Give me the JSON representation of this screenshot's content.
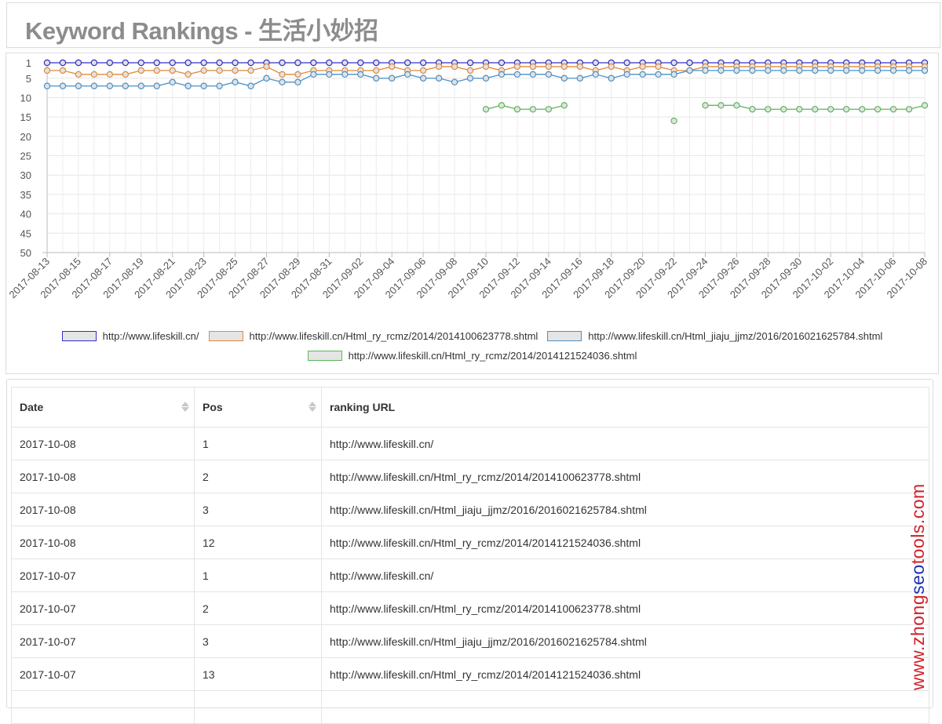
{
  "page": {
    "title": "Keyword Rankings - 生活小妙招"
  },
  "chart_data": {
    "type": "line",
    "ylim": [
      50,
      1
    ],
    "y_reversed": true,
    "y_ticks": [
      "1",
      "5",
      "10",
      "15",
      "20",
      "25",
      "30",
      "35",
      "40",
      "45",
      "50"
    ],
    "x": [
      "2017-08-13",
      "2017-08-14",
      "2017-08-15",
      "2017-08-16",
      "2017-08-17",
      "2017-08-18",
      "2017-08-19",
      "2017-08-20",
      "2017-08-21",
      "2017-08-22",
      "2017-08-23",
      "2017-08-24",
      "2017-08-25",
      "2017-08-26",
      "2017-08-27",
      "2017-08-28",
      "2017-08-29",
      "2017-08-30",
      "2017-08-31",
      "2017-09-01",
      "2017-09-02",
      "2017-09-03",
      "2017-09-04",
      "2017-09-05",
      "2017-09-06",
      "2017-09-07",
      "2017-09-08",
      "2017-09-09",
      "2017-09-10",
      "2017-09-11",
      "2017-09-12",
      "2017-09-13",
      "2017-09-14",
      "2017-09-15",
      "2017-09-16",
      "2017-09-17",
      "2017-09-18",
      "2017-09-19",
      "2017-09-20",
      "2017-09-21",
      "2017-09-22",
      "2017-09-23",
      "2017-09-24",
      "2017-09-25",
      "2017-09-26",
      "2017-09-27",
      "2017-09-28",
      "2017-09-29",
      "2017-09-30",
      "2017-10-01",
      "2017-10-02",
      "2017-10-03",
      "2017-10-04",
      "2017-10-05",
      "2017-10-06",
      "2017-10-07",
      "2017-10-08"
    ],
    "x_tick_labels": [
      "2017-08-13",
      "2017-08-15",
      "2017-08-17",
      "2017-08-19",
      "2017-08-21",
      "2017-08-23",
      "2017-08-25",
      "2017-08-27",
      "2017-08-29",
      "2017-08-31",
      "2017-09-02",
      "2017-09-04",
      "2017-09-06",
      "2017-09-08",
      "2017-09-10",
      "2017-09-12",
      "2017-09-14",
      "2017-09-16",
      "2017-09-18",
      "2017-09-20",
      "2017-09-22",
      "2017-09-24",
      "2017-09-26",
      "2017-09-28",
      "2017-09-30",
      "2017-10-02",
      "2017-10-04",
      "2017-10-06",
      "2017-10-08"
    ],
    "grid": true,
    "legend_position": "bottom",
    "series": [
      {
        "name": "http://www.lifeskill.cn/",
        "color": "#3030c8",
        "values": [
          1,
          1,
          1,
          1,
          1,
          1,
          1,
          1,
          1,
          1,
          1,
          1,
          1,
          1,
          1,
          1,
          1,
          1,
          1,
          1,
          1,
          1,
          1,
          1,
          1,
          1,
          1,
          1,
          1,
          1,
          1,
          1,
          1,
          1,
          1,
          1,
          1,
          1,
          1,
          1,
          1,
          1,
          1,
          1,
          1,
          1,
          1,
          1,
          1,
          1,
          1,
          1,
          1,
          1,
          1,
          1,
          1
        ]
      },
      {
        "name": "http://www.lifeskill.cn/Html_ry_rcmz/2014/2014100623778.shtml",
        "color": "#e08a3c",
        "values": [
          3,
          3,
          4,
          4,
          4,
          4,
          3,
          3,
          3,
          4,
          3,
          3,
          3,
          3,
          2,
          4,
          4,
          3,
          3,
          3,
          3,
          3,
          2,
          3,
          3,
          2,
          2,
          3,
          2,
          3,
          2,
          2,
          2,
          2,
          2,
          3,
          2,
          3,
          2,
          2,
          3,
          3,
          2,
          2,
          2,
          2,
          2,
          2,
          2,
          2,
          2,
          2,
          2,
          2,
          2,
          2,
          2
        ]
      },
      {
        "name": "http://www.lifeskill.cn/Html_jiaju_jjmz/2016/2016021625784.shtml",
        "color": "#4a90c8",
        "values": [
          7,
          7,
          7,
          7,
          7,
          7,
          7,
          7,
          6,
          7,
          7,
          7,
          6,
          7,
          5,
          6,
          6,
          4,
          4,
          4,
          4,
          5,
          5,
          4,
          5,
          5,
          6,
          5,
          5,
          4,
          4,
          4,
          4,
          5,
          5,
          4,
          5,
          4,
          4,
          4,
          4,
          3,
          3,
          3,
          3,
          3,
          3,
          3,
          3,
          3,
          3,
          3,
          3,
          3,
          3,
          3,
          3
        ]
      },
      {
        "name": "http://www.lifeskill.cn/Html_ry_rcmz/2014/2014121524036.shtml",
        "color": "#5cb85c",
        "values": [
          null,
          null,
          null,
          null,
          null,
          null,
          null,
          null,
          null,
          null,
          null,
          null,
          null,
          null,
          null,
          null,
          null,
          null,
          null,
          null,
          null,
          null,
          null,
          null,
          null,
          null,
          null,
          null,
          13,
          12,
          13,
          13,
          13,
          12,
          null,
          null,
          null,
          null,
          null,
          null,
          16,
          null,
          12,
          12,
          12,
          13,
          13,
          13,
          13,
          13,
          13,
          13,
          13,
          13,
          13,
          13,
          12
        ]
      }
    ]
  },
  "table": {
    "headers": {
      "date": "Date",
      "pos": "Pos",
      "url": "ranking URL"
    },
    "rows": [
      {
        "date": "2017-10-08",
        "pos": "1",
        "url": "http://www.lifeskill.cn/"
      },
      {
        "date": "2017-10-08",
        "pos": "2",
        "url": "http://www.lifeskill.cn/Html_ry_rcmz/2014/2014100623778.shtml"
      },
      {
        "date": "2017-10-08",
        "pos": "3",
        "url": "http://www.lifeskill.cn/Html_jiaju_jjmz/2016/2016021625784.shtml"
      },
      {
        "date": "2017-10-08",
        "pos": "12",
        "url": "http://www.lifeskill.cn/Html_ry_rcmz/2014/2014121524036.shtml"
      },
      {
        "date": "2017-10-07",
        "pos": "1",
        "url": "http://www.lifeskill.cn/"
      },
      {
        "date": "2017-10-07",
        "pos": "2",
        "url": "http://www.lifeskill.cn/Html_ry_rcmz/2014/2014100623778.shtml"
      },
      {
        "date": "2017-10-07",
        "pos": "3",
        "url": "http://www.lifeskill.cn/Html_jiaju_jjmz/2016/2016021625784.shtml"
      },
      {
        "date": "2017-10-07",
        "pos": "13",
        "url": "http://www.lifeskill.cn/Html_ry_rcmz/2014/2014121524036.shtml"
      }
    ]
  },
  "watermark": {
    "parts": [
      {
        "text": "www.zhong",
        "color": "#d0202a"
      },
      {
        "text": "seo",
        "color": "#2030b0"
      },
      {
        "text": "tools.com",
        "color": "#d0202a"
      }
    ]
  }
}
